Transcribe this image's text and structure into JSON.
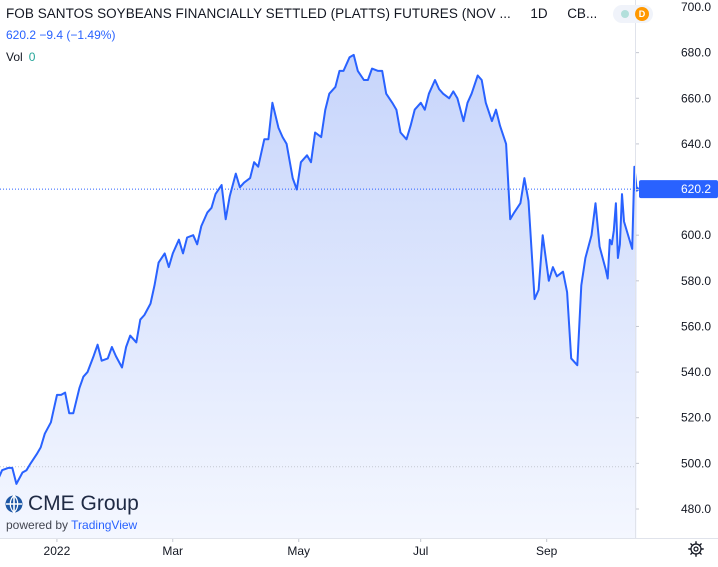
{
  "header": {
    "title": "FOB SANTOS SOYBEANS FINANCIALLY SETTLED (PLATTS) FUTURES (NOV ...",
    "interval": "1D",
    "exchange": "CB...",
    "last_price": "620.2",
    "change": "−9.4",
    "change_pct": "(−1.49%)",
    "volume_label": "Vol",
    "volume_value": "0",
    "status_letter": "D"
  },
  "watermark": {
    "brand": "CME Group",
    "powered_by": "powered by",
    "provider": "TradingView"
  },
  "colors": {
    "line": "#2962ff",
    "area_top": "#c7d5fb",
    "area_bottom": "#f4f7ff",
    "axis_text": "#131722",
    "price_label_bg": "#2962ff"
  },
  "chart_data": {
    "type": "area",
    "ylim": [
      475,
      700
    ],
    "y_ticks": [
      480,
      500,
      520,
      540,
      560,
      580,
      600,
      620,
      640,
      660,
      680,
      700
    ],
    "x_tick_labels": [
      {
        "label": "2022",
        "date": "2022-01-03"
      },
      {
        "label": "Mar",
        "date": "2022-03-01"
      },
      {
        "label": "May",
        "date": "2022-05-02"
      },
      {
        "label": "Jul",
        "date": "2022-07-01"
      },
      {
        "label": "Sep",
        "date": "2022-09-01"
      }
    ],
    "x_range": [
      "2021-12-06",
      "2022-10-12"
    ],
    "last_value": 620.2,
    "reference_line": 498.5,
    "series": [
      {
        "points": [
          [
            "2021-12-06",
            496
          ],
          [
            "2021-12-08",
            493
          ],
          [
            "2021-12-10",
            497
          ],
          [
            "2021-12-13",
            498
          ],
          [
            "2021-12-15",
            498
          ],
          [
            "2021-12-17",
            491
          ],
          [
            "2021-12-20",
            496
          ],
          [
            "2021-12-22",
            497
          ],
          [
            "2021-12-24",
            500
          ],
          [
            "2021-12-27",
            504
          ],
          [
            "2021-12-29",
            507
          ],
          [
            "2021-12-31",
            513
          ],
          [
            "2022-01-03",
            518
          ],
          [
            "2022-01-04",
            522
          ],
          [
            "2022-01-06",
            530
          ],
          [
            "2022-01-08",
            530
          ],
          [
            "2022-01-10",
            531
          ],
          [
            "2022-01-12",
            522
          ],
          [
            "2022-01-14",
            522
          ],
          [
            "2022-01-17",
            533
          ],
          [
            "2022-01-19",
            538
          ],
          [
            "2022-01-21",
            540
          ],
          [
            "2022-01-24",
            547
          ],
          [
            "2022-01-26",
            552
          ],
          [
            "2022-01-28",
            545
          ],
          [
            "2022-01-31",
            546
          ],
          [
            "2022-02-02",
            551
          ],
          [
            "2022-02-04",
            547
          ],
          [
            "2022-02-07",
            542
          ],
          [
            "2022-02-09",
            551
          ],
          [
            "2022-02-11",
            556
          ],
          [
            "2022-02-14",
            553
          ],
          [
            "2022-02-16",
            563
          ],
          [
            "2022-02-18",
            565
          ],
          [
            "2022-02-21",
            570
          ],
          [
            "2022-02-23",
            578
          ],
          [
            "2022-02-25",
            588
          ],
          [
            "2022-02-28",
            592
          ],
          [
            "2022-03-02",
            586
          ],
          [
            "2022-03-04",
            592
          ],
          [
            "2022-03-07",
            598
          ],
          [
            "2022-03-09",
            592
          ],
          [
            "2022-03-11",
            599
          ],
          [
            "2022-03-14",
            600
          ],
          [
            "2022-03-16",
            596
          ],
          [
            "2022-03-18",
            604
          ],
          [
            "2022-03-21",
            610
          ],
          [
            "2022-03-23",
            612
          ],
          [
            "2022-03-25",
            618
          ],
          [
            "2022-03-28",
            622
          ],
          [
            "2022-03-30",
            607
          ],
          [
            "2022-04-01",
            617
          ],
          [
            "2022-04-04",
            627
          ],
          [
            "2022-04-06",
            621
          ],
          [
            "2022-04-08",
            623
          ],
          [
            "2022-04-11",
            625
          ],
          [
            "2022-04-13",
            632
          ],
          [
            "2022-04-15",
            630
          ],
          [
            "2022-04-18",
            642
          ],
          [
            "2022-04-20",
            642
          ],
          [
            "2022-04-22",
            658
          ],
          [
            "2022-04-25",
            647
          ],
          [
            "2022-04-27",
            643
          ],
          [
            "2022-04-29",
            640
          ],
          [
            "2022-05-02",
            625
          ],
          [
            "2022-05-04",
            620
          ],
          [
            "2022-05-06",
            632
          ],
          [
            "2022-05-09",
            635
          ],
          [
            "2022-05-11",
            632
          ],
          [
            "2022-05-13",
            645
          ],
          [
            "2022-05-16",
            643
          ],
          [
            "2022-05-18",
            655
          ],
          [
            "2022-05-20",
            662
          ],
          [
            "2022-05-23",
            665
          ],
          [
            "2022-05-25",
            672
          ],
          [
            "2022-05-27",
            672
          ],
          [
            "2022-05-30",
            678
          ],
          [
            "2022-06-01",
            679
          ],
          [
            "2022-06-03",
            672
          ],
          [
            "2022-06-06",
            668
          ],
          [
            "2022-06-08",
            668
          ],
          [
            "2022-06-10",
            673
          ],
          [
            "2022-06-13",
            672
          ],
          [
            "2022-06-15",
            672
          ],
          [
            "2022-06-17",
            662
          ],
          [
            "2022-06-20",
            658
          ],
          [
            "2022-06-22",
            655
          ],
          [
            "2022-06-24",
            645
          ],
          [
            "2022-06-27",
            642
          ],
          [
            "2022-06-29",
            648
          ],
          [
            "2022-07-01",
            655
          ],
          [
            "2022-07-04",
            658
          ],
          [
            "2022-07-06",
            655
          ],
          [
            "2022-07-08",
            662
          ],
          [
            "2022-07-11",
            668
          ],
          [
            "2022-07-13",
            664
          ],
          [
            "2022-07-15",
            662
          ],
          [
            "2022-07-18",
            660
          ],
          [
            "2022-07-20",
            663
          ],
          [
            "2022-07-22",
            660
          ],
          [
            "2022-07-25",
            650
          ],
          [
            "2022-07-27",
            658
          ],
          [
            "2022-07-29",
            662
          ],
          [
            "2022-08-01",
            670
          ],
          [
            "2022-08-03",
            668
          ],
          [
            "2022-08-05",
            658
          ],
          [
            "2022-08-08",
            650
          ],
          [
            "2022-08-10",
            655
          ],
          [
            "2022-08-12",
            648
          ],
          [
            "2022-08-15",
            640
          ],
          [
            "2022-08-17",
            607
          ],
          [
            "2022-08-19",
            610
          ],
          [
            "2022-08-22",
            614
          ],
          [
            "2022-08-24",
            625
          ],
          [
            "2022-08-26",
            615
          ],
          [
            "2022-08-29",
            572
          ],
          [
            "2022-08-31",
            576
          ],
          [
            "2022-09-02",
            600
          ],
          [
            "2022-09-05",
            580
          ],
          [
            "2022-09-07",
            586
          ],
          [
            "2022-09-09",
            582
          ],
          [
            "2022-09-12",
            584
          ],
          [
            "2022-09-14",
            575
          ],
          [
            "2022-09-16",
            546
          ],
          [
            "2022-09-19",
            543
          ],
          [
            "2022-09-21",
            578
          ],
          [
            "2022-09-23",
            590
          ],
          [
            "2022-09-26",
            600
          ],
          [
            "2022-09-28",
            614
          ],
          [
            "2022-09-30",
            595
          ],
          [
            "2022-10-03",
            585
          ],
          [
            "2022-10-04",
            581
          ],
          [
            "2022-10-05",
            598
          ],
          [
            "2022-10-06",
            596
          ],
          [
            "2022-10-07",
            602
          ],
          [
            "2022-10-08",
            614
          ],
          [
            "2022-10-09",
            590
          ],
          [
            "2022-10-10",
            596
          ],
          [
            "2022-10-11",
            618
          ],
          [
            "2022-10-12",
            606
          ],
          [
            "2022-10-12",
            594
          ],
          [
            "2022-10-12",
            630
          ],
          [
            "2022-10-12",
            620.2
          ]
        ]
      }
    ]
  }
}
